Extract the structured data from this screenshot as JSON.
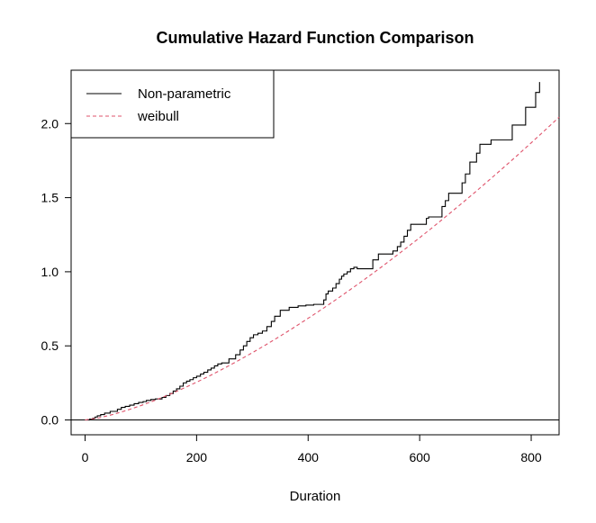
{
  "chart_data": {
    "type": "line",
    "title": "Cumulative Hazard Function Comparison",
    "xlabel": "Duration",
    "ylabel": "",
    "xlim": [
      -25,
      850
    ],
    "ylim": [
      -0.1,
      2.36
    ],
    "xticks": [
      0,
      200,
      400,
      600,
      800
    ],
    "yticks": [
      0.0,
      0.5,
      1.0,
      1.5,
      2.0
    ],
    "xtick_labels": [
      "0",
      "200",
      "400",
      "600",
      "800"
    ],
    "ytick_labels": [
      "0.0",
      "0.5",
      "1.0",
      "1.5",
      "2.0"
    ],
    "grid": false,
    "legend": {
      "position": "top-left",
      "entries": [
        {
          "label": "Non-parametric",
          "line_style": "solid",
          "color": "#000000"
        },
        {
          "label": "weibull",
          "line_style": "dashed",
          "color": "#df536b"
        }
      ]
    },
    "reference_lines": [
      {
        "axis": "y",
        "value": 0.0,
        "color": "#000000",
        "line_style": "solid"
      }
    ],
    "series": [
      {
        "name": "Non-parametric",
        "style": "step",
        "color": "#000000",
        "x": [
          0,
          8,
          14,
          18,
          22,
          28,
          35,
          45,
          58,
          65,
          72,
          80,
          88,
          96,
          104,
          110,
          118,
          126,
          138,
          145,
          152,
          158,
          164,
          170,
          176,
          182,
          188,
          194,
          200,
          207,
          213,
          220,
          226,
          232,
          238,
          245,
          258,
          270,
          278,
          284,
          290,
          296,
          302,
          310,
          318,
          326,
          334,
          340,
          350,
          366,
          382,
          396,
          410,
          428,
          432,
          436,
          444,
          450,
          456,
          460,
          464,
          470,
          476,
          482,
          488,
          516,
          526,
          552,
          560,
          566,
          572,
          578,
          584,
          612,
          616,
          640,
          646,
          652,
          676,
          682,
          690,
          702,
          708,
          728,
          766,
          790,
          808,
          815
        ],
        "y": [
          0.0,
          0.005,
          0.012,
          0.02,
          0.028,
          0.036,
          0.046,
          0.058,
          0.072,
          0.085,
          0.092,
          0.1,
          0.11,
          0.118,
          0.124,
          0.132,
          0.138,
          0.142,
          0.152,
          0.165,
          0.178,
          0.195,
          0.21,
          0.228,
          0.25,
          0.262,
          0.272,
          0.285,
          0.295,
          0.31,
          0.322,
          0.338,
          0.35,
          0.365,
          0.378,
          0.385,
          0.412,
          0.44,
          0.472,
          0.5,
          0.53,
          0.555,
          0.575,
          0.585,
          0.6,
          0.63,
          0.665,
          0.7,
          0.74,
          0.76,
          0.77,
          0.775,
          0.78,
          0.81,
          0.85,
          0.87,
          0.89,
          0.92,
          0.95,
          0.97,
          0.985,
          1.0,
          1.02,
          1.03,
          1.02,
          1.08,
          1.12,
          1.14,
          1.17,
          1.2,
          1.24,
          1.28,
          1.32,
          1.36,
          1.37,
          1.44,
          1.48,
          1.53,
          1.6,
          1.66,
          1.74,
          1.8,
          1.86,
          1.89,
          1.99,
          2.11,
          2.21,
          2.28
        ]
      },
      {
        "name": "weibull",
        "style": "dashed",
        "color": "#df536b",
        "x": [
          0,
          25,
          50,
          75,
          100,
          125,
          150,
          175,
          200,
          225,
          250,
          275,
          300,
          325,
          350,
          375,
          400,
          425,
          450,
          475,
          500,
          525,
          550,
          575,
          600,
          625,
          650,
          675,
          700,
          725,
          750,
          775,
          800,
          825,
          850
        ],
        "y": [
          0.0,
          0.014,
          0.037,
          0.065,
          0.097,
          0.132,
          0.17,
          0.211,
          0.255,
          0.301,
          0.35,
          0.401,
          0.454,
          0.509,
          0.566,
          0.625,
          0.686,
          0.748,
          0.812,
          0.878,
          0.945,
          1.014,
          1.085,
          1.157,
          1.23,
          1.305,
          1.382,
          1.46,
          1.539,
          1.62,
          1.702,
          1.785,
          1.87,
          1.956,
          2.043
        ]
      }
    ]
  }
}
